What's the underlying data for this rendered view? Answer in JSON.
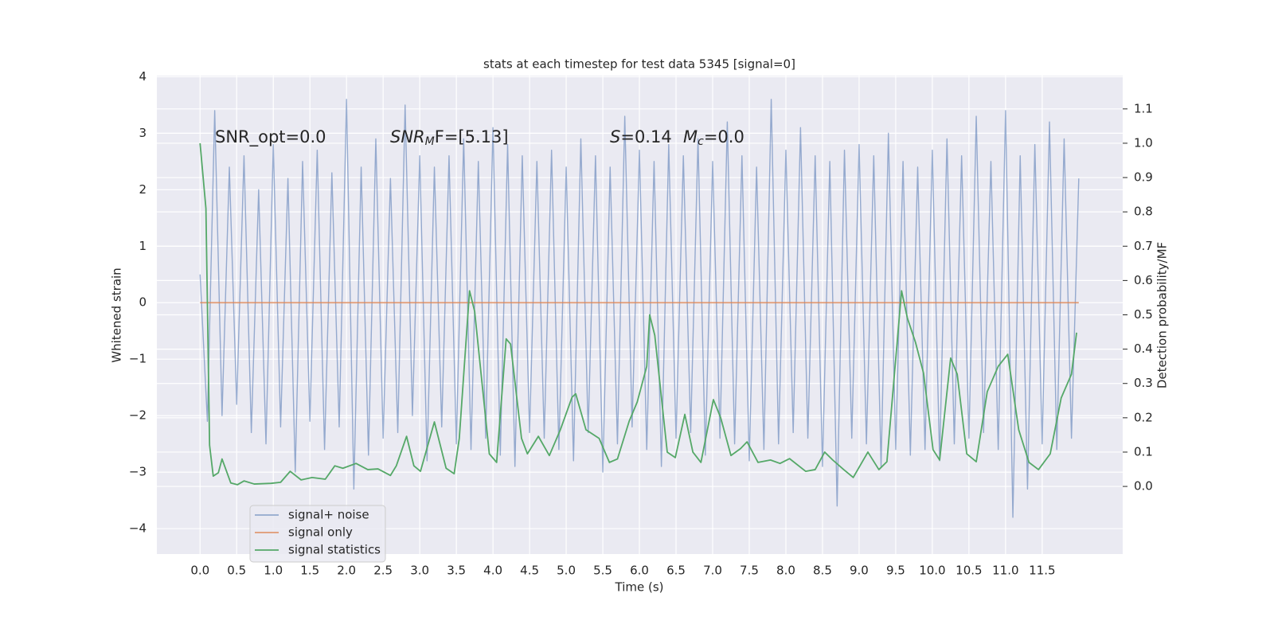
{
  "chart_data": {
    "type": "line",
    "title": "stats at each timestep for test data 5345 [signal=0]",
    "xlabel": "Time (s)",
    "ylabel": "Whitened strain",
    "y2label": "Detection probability/MF",
    "annotations": [
      {
        "main": "SNR_opt=0.0"
      },
      {
        "main": "SNR",
        "sub": "M",
        "rest": "F=[5.13]"
      },
      {
        "main": "S",
        "rest": "=0.14"
      },
      {
        "main": "M",
        "sub": "c",
        "rest": "=0.0"
      }
    ],
    "xlim": [
      -0.59,
      12.6
    ],
    "ylim": [
      -4.45,
      4.02
    ],
    "y2lim": [
      -0.197,
      1.197
    ],
    "xticks": [
      {
        "value": 0,
        "label": "0.0"
      },
      {
        "value": 0.5,
        "label": "0.5"
      },
      {
        "value": 1,
        "label": "1.0"
      },
      {
        "value": 1.5,
        "label": "1.5"
      },
      {
        "value": 2,
        "label": "2.0"
      },
      {
        "value": 2.5,
        "label": "2.5"
      },
      {
        "value": 3,
        "label": "3.0"
      },
      {
        "value": 3.5,
        "label": "3.5"
      },
      {
        "value": 4,
        "label": "4.0"
      },
      {
        "value": 4.5,
        "label": "4.5"
      },
      {
        "value": 5,
        "label": "5.0"
      },
      {
        "value": 5.5,
        "label": "5.5"
      },
      {
        "value": 6,
        "label": "6.0"
      },
      {
        "value": 6.5,
        "label": "6.5"
      },
      {
        "value": 7,
        "label": "7.0"
      },
      {
        "value": 7.5,
        "label": "7.5"
      },
      {
        "value": 8,
        "label": "8.0"
      },
      {
        "value": 8.5,
        "label": "8.5"
      },
      {
        "value": 9,
        "label": "9.0"
      },
      {
        "value": 9.5,
        "label": "9.5"
      },
      {
        "value": 10,
        "label": "10.0"
      },
      {
        "value": 10.5,
        "label": "10.5"
      },
      {
        "value": 11,
        "label": "11.0"
      },
      {
        "value": 11.5,
        "label": "11.5"
      }
    ],
    "yticks": [
      {
        "value": -4,
        "label": "−4"
      },
      {
        "value": -3,
        "label": "−3"
      },
      {
        "value": -2,
        "label": "−2"
      },
      {
        "value": -1,
        "label": "−1"
      },
      0,
      1,
      2,
      3,
      4
    ],
    "y2ticks": [
      {
        "value": 0,
        "label": "0.0"
      },
      {
        "value": 0.1,
        "label": "0.1"
      },
      {
        "value": 0.2,
        "label": "0.2"
      },
      {
        "value": 0.3,
        "label": "0.3"
      },
      {
        "value": 0.4,
        "label": "0.4"
      },
      {
        "value": 0.5,
        "label": "0.5"
      },
      {
        "value": 0.6,
        "label": "0.6"
      },
      {
        "value": 0.7,
        "label": "0.7"
      },
      {
        "value": 0.8,
        "label": "0.8"
      },
      {
        "value": 0.9,
        "label": "0.9"
      },
      {
        "value": 1,
        "label": "1.0"
      },
      {
        "value": 1.1,
        "label": "1.1"
      }
    ],
    "grid": true,
    "legend": "lower left",
    "series": [
      {
        "name": "signal+ noise",
        "color": "#4c72b0",
        "x": [
          0,
          0.1,
          0.2,
          0.3,
          0.4,
          0.5,
          0.6,
          0.7,
          0.8,
          0.9,
          1,
          1.1,
          1.2,
          1.3,
          1.4,
          1.5,
          1.6,
          1.7,
          1.8,
          1.9,
          2,
          2.1,
          2.2,
          2.3,
          2.4,
          2.5,
          2.6,
          2.7,
          2.8,
          2.9,
          3,
          3.1,
          3.2,
          3.3,
          3.4,
          3.5,
          3.6,
          3.7,
          3.8,
          3.9,
          4,
          4.1,
          4.2,
          4.3,
          4.4,
          4.5,
          4.6,
          4.7,
          4.8,
          4.9,
          5,
          5.1,
          5.2,
          5.3,
          5.4,
          5.5,
          5.6,
          5.7,
          5.8,
          5.9,
          6,
          6.1,
          6.2,
          6.3,
          6.4,
          6.5,
          6.6,
          6.7,
          6.8,
          6.9,
          7,
          7.1,
          7.2,
          7.3,
          7.4,
          7.5,
          7.6,
          7.7,
          7.8,
          7.9,
          8,
          8.1,
          8.2,
          8.3,
          8.4,
          8.5,
          8.6,
          8.7,
          8.8,
          8.9,
          9,
          9.1,
          9.2,
          9.3,
          9.4,
          9.5,
          9.6,
          9.7,
          9.8,
          9.9,
          10,
          10.1,
          10.2,
          10.3,
          10.4,
          10.5,
          10.6,
          10.7,
          10.8,
          10.9,
          11,
          11.1,
          11.2,
          11.3,
          11.4,
          11.5,
          11.6,
          11.7,
          11.8,
          11.9,
          12
        ],
        "values": [
          0.5,
          -2.1,
          3.4,
          -2.0,
          2.4,
          -1.8,
          2.6,
          -2.3,
          2.0,
          -2.5,
          2.8,
          -2.2,
          2.2,
          -3.0,
          2.5,
          -2.1,
          2.7,
          -2.6,
          2.3,
          -2.2,
          3.6,
          -3.3,
          2.4,
          -2.7,
          2.9,
          -2.4,
          2.2,
          -2.3,
          3.5,
          -2.0,
          2.6,
          -2.8,
          2.4,
          -2.2,
          2.6,
          -2.5,
          2.9,
          -2.6,
          2.5,
          -2.4,
          3.1,
          -2.7,
          2.8,
          -2.9,
          2.6,
          -2.3,
          2.5,
          -2.4,
          2.7,
          -2.6,
          2.4,
          -2.8,
          2.9,
          -2.3,
          2.6,
          -3.0,
          2.4,
          -2.5,
          3.3,
          -2.2,
          2.7,
          -2.6,
          2.5,
          -2.9,
          2.8,
          -2.4,
          2.6,
          -2.3,
          2.9,
          -2.7,
          2.5,
          -2.4,
          3.2,
          -2.5,
          2.6,
          -2.8,
          2.4,
          -2.6,
          3.6,
          -2.5,
          2.7,
          -2.3,
          3.1,
          -2.4,
          2.6,
          -2.9,
          2.5,
          -3.6,
          2.7,
          -2.4,
          2.8,
          -2.5,
          2.6,
          -2.9,
          3.0,
          -2.6,
          2.5,
          -2.7,
          2.4,
          -2.6,
          2.7,
          -2.8,
          2.9,
          -2.5,
          2.6,
          -2.4,
          3.3,
          -2.3,
          2.5,
          -2.6,
          3.4,
          -3.8,
          2.6,
          -3.3,
          2.8,
          -2.5,
          3.2,
          -2.6,
          2.9,
          -2.4,
          2.2
        ]
      },
      {
        "name": "signal only",
        "color": "#dd8452",
        "x": [
          0,
          12
        ],
        "values": [
          0,
          0
        ]
      },
      {
        "name": "signal statistics",
        "color": "#55a868",
        "axis": "y2",
        "x": [
          0,
          0.08,
          0.13,
          0.18,
          0.25,
          0.3,
          0.42,
          0.51,
          0.6,
          0.74,
          0.97,
          1.1,
          1.23,
          1.38,
          1.53,
          1.71,
          1.84,
          1.95,
          2.13,
          2.29,
          2.43,
          2.6,
          2.68,
          2.82,
          2.92,
          3.01,
          3.2,
          3.36,
          3.47,
          3.54,
          3.68,
          3.75,
          3.95,
          4.05,
          4.18,
          4.24,
          4.39,
          4.47,
          4.62,
          4.77,
          4.92,
          5.08,
          5.13,
          5.27,
          5.45,
          5.59,
          5.7,
          5.86,
          5.97,
          6.1,
          6.14,
          6.21,
          6.38,
          6.49,
          6.62,
          6.73,
          6.84,
          7.01,
          7.11,
          7.25,
          7.38,
          7.47,
          7.62,
          7.79,
          7.92,
          8.05,
          8.27,
          8.4,
          8.53,
          8.64,
          8.79,
          8.92,
          9.12,
          9.27,
          9.38,
          9.58,
          9.66,
          9.77,
          9.88,
          10.01,
          10.1,
          10.25,
          10.34,
          10.47,
          10.6,
          10.75,
          10.9,
          11.03,
          11.18,
          11.32,
          11.45,
          11.61,
          11.76,
          11.9,
          11.97
        ],
        "values": [
          1.0,
          0.81,
          0.12,
          0.03,
          0.04,
          0.08,
          0.01,
          0.005,
          0.016,
          0.007,
          0.009,
          0.012,
          0.044,
          0.019,
          0.026,
          0.021,
          0.06,
          0.053,
          0.067,
          0.049,
          0.051,
          0.032,
          0.06,
          0.146,
          0.06,
          0.044,
          0.188,
          0.053,
          0.037,
          0.14,
          0.57,
          0.51,
          0.095,
          0.07,
          0.43,
          0.415,
          0.14,
          0.095,
          0.146,
          0.09,
          0.165,
          0.26,
          0.27,
          0.165,
          0.14,
          0.07,
          0.08,
          0.19,
          0.246,
          0.35,
          0.5,
          0.44,
          0.1,
          0.084,
          0.21,
          0.1,
          0.07,
          0.253,
          0.2,
          0.09,
          0.11,
          0.13,
          0.07,
          0.077,
          0.067,
          0.081,
          0.044,
          0.049,
          0.1,
          0.077,
          0.049,
          0.026,
          0.1,
          0.049,
          0.072,
          0.57,
          0.49,
          0.42,
          0.33,
          0.107,
          0.077,
          0.374,
          0.327,
          0.095,
          0.072,
          0.276,
          0.35,
          0.385,
          0.165,
          0.07,
          0.049,
          0.095,
          0.258,
          0.327,
          0.448
        ]
      }
    ]
  }
}
